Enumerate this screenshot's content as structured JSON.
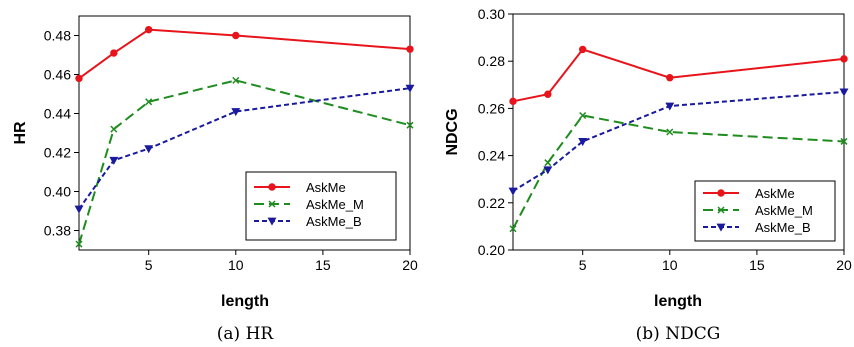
{
  "chart_data": [
    {
      "type": "line",
      "caption": "(a) HR",
      "xlabel": "length",
      "ylabel": "HR",
      "x": [
        1,
        3,
        5,
        10,
        20
      ],
      "xlim": [
        1,
        20
      ],
      "xticks": [
        5,
        10,
        15,
        20
      ],
      "ylim": [
        0.37,
        0.49
      ],
      "yticks": [
        0.38,
        0.4,
        0.42,
        0.44,
        0.46,
        0.48
      ],
      "ytick_decimals": 2,
      "grid": false,
      "legend_position": "bottom-right",
      "series": [
        {
          "name": "AskMe",
          "values": [
            0.458,
            0.471,
            0.483,
            0.48,
            0.473
          ],
          "color": "#e8141b",
          "dash": "",
          "marker": "circle"
        },
        {
          "name": "AskMe_M",
          "values": [
            0.373,
            0.432,
            0.446,
            0.457,
            0.434
          ],
          "color": "#1e8c1e",
          "dash": "10,5",
          "marker": "x"
        },
        {
          "name": "AskMe_B",
          "values": [
            0.391,
            0.416,
            0.422,
            0.441,
            0.453
          ],
          "color": "#1a1a9e",
          "dash": "5,3",
          "marker": "triangle-down"
        }
      ]
    },
    {
      "type": "line",
      "caption": "(b) NDCG",
      "xlabel": "length",
      "ylabel": "NDCG",
      "x": [
        1,
        3,
        5,
        10,
        20
      ],
      "xlim": [
        1,
        20
      ],
      "xticks": [
        5,
        10,
        15,
        20
      ],
      "ylim": [
        0.2,
        0.3
      ],
      "yticks": [
        0.2,
        0.22,
        0.24,
        0.26,
        0.28,
        0.3
      ],
      "ytick_decimals": 2,
      "grid": false,
      "legend_position": "bottom-right",
      "series": [
        {
          "name": "AskMe",
          "values": [
            0.263,
            0.266,
            0.285,
            0.273,
            0.281
          ],
          "color": "#e8141b",
          "dash": "",
          "marker": "circle"
        },
        {
          "name": "AskMe_M",
          "values": [
            0.209,
            0.237,
            0.257,
            0.25,
            0.246
          ],
          "color": "#1e8c1e",
          "dash": "10,5",
          "marker": "x"
        },
        {
          "name": "AskMe_B",
          "values": [
            0.225,
            0.234,
            0.246,
            0.261,
            0.267
          ],
          "color": "#1a1a9e",
          "dash": "5,3",
          "marker": "triangle-down"
        }
      ]
    }
  ]
}
